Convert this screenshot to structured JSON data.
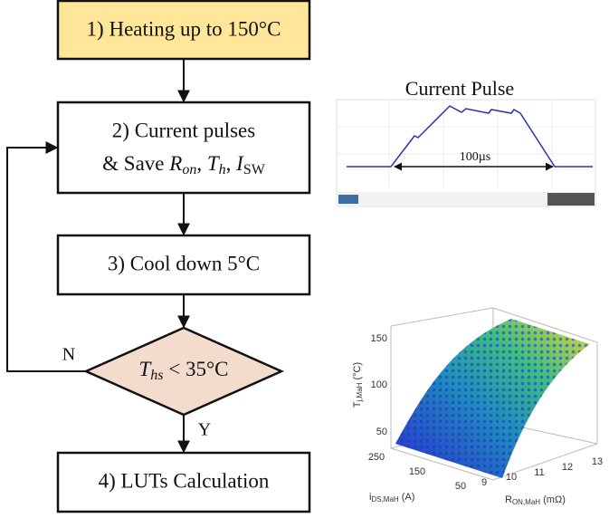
{
  "nodes": [
    {
      "label": "1) Heating up to 150°C"
    },
    {
      "line1": "2) Current pulses",
      "line2": [
        "& Save ",
        "R",
        "on",
        ", ",
        "T",
        "h",
        ", ",
        "I",
        "SW"
      ]
    },
    {
      "label": "3) Cool down 5°C"
    },
    {
      "label": [
        "T",
        "hs",
        " < 35°C"
      ]
    },
    {
      "label": "4) LUTs Calculation"
    }
  ],
  "edges": {
    "no": "N",
    "yes": "Y"
  },
  "scope": {
    "title": "Current Pulse",
    "annotation": "100µs"
  },
  "surface_plot": {
    "z_label": {
      "main": "T",
      "sub": "j,MaH",
      "unit": "(°C)"
    },
    "x_label": {
      "main": "i",
      "sub": "DS,MaH",
      "unit": "(A)"
    },
    "y_label": {
      "main": "R",
      "sub": "ON,MaH",
      "unit": "(mΩ)"
    },
    "z_ticks": [
      150,
      100,
      50
    ],
    "x_ticks": [
      250,
      150,
      50
    ],
    "y_ticks": [
      9,
      10,
      11,
      12,
      13
    ]
  }
}
